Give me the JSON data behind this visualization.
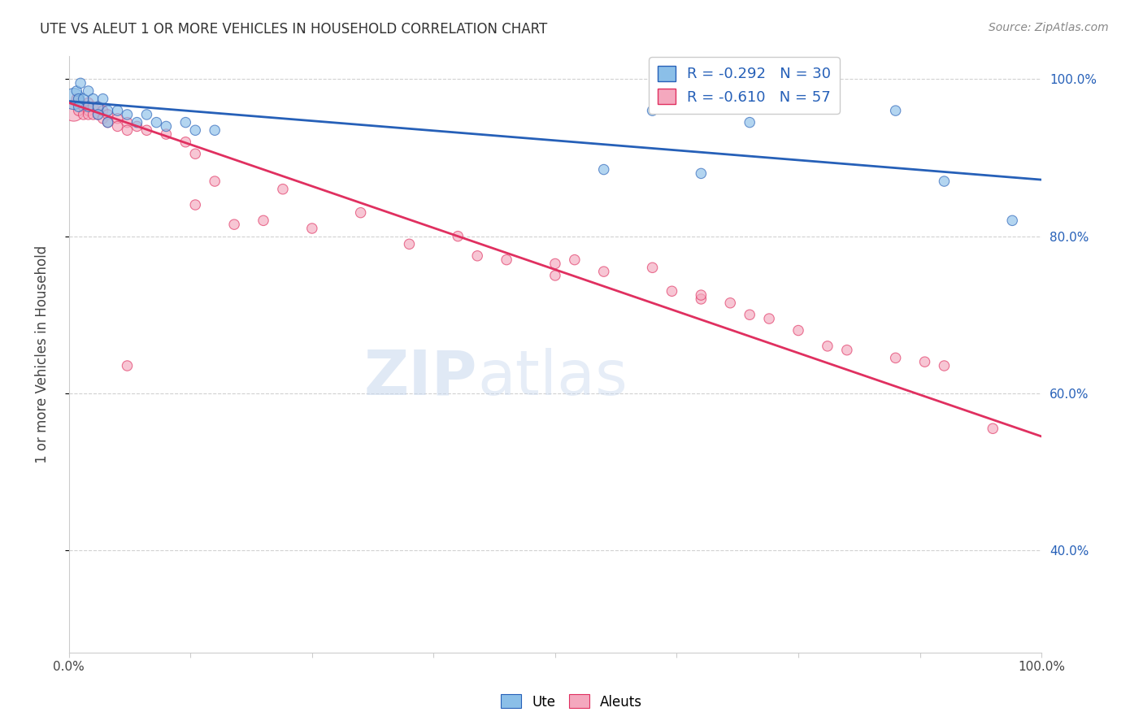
{
  "title": "UTE VS ALEUT 1 OR MORE VEHICLES IN HOUSEHOLD CORRELATION CHART",
  "source": "Source: ZipAtlas.com",
  "ylabel": "1 or more Vehicles in Household",
  "legend_blue_r": "-0.292",
  "legend_blue_n": "30",
  "legend_pink_r": "-0.610",
  "legend_pink_n": "57",
  "ute_color": "#8BBFE8",
  "aleut_color": "#F4A8BE",
  "trendline_ute_color": "#2660B8",
  "trendline_aleut_color": "#E03060",
  "grid_color": "#CCCCCC",
  "background_color": "#FFFFFF",
  "ute_trendline": [
    0.0,
    0.972,
    1.0,
    0.872
  ],
  "aleut_trendline": [
    0.0,
    0.97,
    1.0,
    0.545
  ],
  "ute_points": [
    [
      0.005,
      0.975
    ],
    [
      0.008,
      0.985
    ],
    [
      0.01,
      0.975
    ],
    [
      0.01,
      0.965
    ],
    [
      0.012,
      0.995
    ],
    [
      0.015,
      0.975
    ],
    [
      0.02,
      0.985
    ],
    [
      0.02,
      0.965
    ],
    [
      0.025,
      0.975
    ],
    [
      0.03,
      0.965
    ],
    [
      0.03,
      0.955
    ],
    [
      0.035,
      0.975
    ],
    [
      0.04,
      0.96
    ],
    [
      0.04,
      0.945
    ],
    [
      0.05,
      0.96
    ],
    [
      0.06,
      0.955
    ],
    [
      0.07,
      0.945
    ],
    [
      0.08,
      0.955
    ],
    [
      0.09,
      0.945
    ],
    [
      0.1,
      0.94
    ],
    [
      0.12,
      0.945
    ],
    [
      0.13,
      0.935
    ],
    [
      0.15,
      0.935
    ],
    [
      0.55,
      0.885
    ],
    [
      0.6,
      0.96
    ],
    [
      0.65,
      0.88
    ],
    [
      0.7,
      0.945
    ],
    [
      0.85,
      0.96
    ],
    [
      0.9,
      0.87
    ],
    [
      0.97,
      0.82
    ]
  ],
  "ute_sizes": [
    350,
    80,
    80,
    80,
    80,
    80,
    80,
    80,
    80,
    80,
    80,
    80,
    80,
    80,
    80,
    80,
    80,
    80,
    80,
    80,
    80,
    80,
    80,
    80,
    80,
    80,
    80,
    80,
    80,
    80
  ],
  "aleut_points": [
    [
      0.005,
      0.96
    ],
    [
      0.008,
      0.975
    ],
    [
      0.01,
      0.975
    ],
    [
      0.01,
      0.96
    ],
    [
      0.012,
      0.97
    ],
    [
      0.015,
      0.965
    ],
    [
      0.015,
      0.955
    ],
    [
      0.02,
      0.97
    ],
    [
      0.02,
      0.96
    ],
    [
      0.02,
      0.955
    ],
    [
      0.025,
      0.965
    ],
    [
      0.025,
      0.955
    ],
    [
      0.03,
      0.965
    ],
    [
      0.03,
      0.955
    ],
    [
      0.035,
      0.96
    ],
    [
      0.035,
      0.95
    ],
    [
      0.04,
      0.955
    ],
    [
      0.04,
      0.945
    ],
    [
      0.05,
      0.95
    ],
    [
      0.05,
      0.94
    ],
    [
      0.06,
      0.945
    ],
    [
      0.06,
      0.935
    ],
    [
      0.07,
      0.94
    ],
    [
      0.08,
      0.935
    ],
    [
      0.1,
      0.93
    ],
    [
      0.12,
      0.92
    ],
    [
      0.13,
      0.84
    ],
    [
      0.13,
      0.905
    ],
    [
      0.15,
      0.87
    ],
    [
      0.17,
      0.815
    ],
    [
      0.2,
      0.82
    ],
    [
      0.22,
      0.86
    ],
    [
      0.25,
      0.81
    ],
    [
      0.3,
      0.83
    ],
    [
      0.35,
      0.79
    ],
    [
      0.4,
      0.8
    ],
    [
      0.42,
      0.775
    ],
    [
      0.45,
      0.77
    ],
    [
      0.5,
      0.765
    ],
    [
      0.5,
      0.75
    ],
    [
      0.52,
      0.77
    ],
    [
      0.55,
      0.755
    ],
    [
      0.6,
      0.76
    ],
    [
      0.62,
      0.73
    ],
    [
      0.65,
      0.72
    ],
    [
      0.65,
      0.725
    ],
    [
      0.68,
      0.715
    ],
    [
      0.7,
      0.7
    ],
    [
      0.72,
      0.695
    ],
    [
      0.75,
      0.68
    ],
    [
      0.78,
      0.66
    ],
    [
      0.8,
      0.655
    ],
    [
      0.85,
      0.645
    ],
    [
      0.88,
      0.64
    ],
    [
      0.9,
      0.635
    ],
    [
      0.95,
      0.555
    ],
    [
      0.06,
      0.635
    ]
  ],
  "aleut_sizes": [
    350,
    80,
    80,
    80,
    80,
    80,
    80,
    80,
    80,
    80,
    80,
    80,
    80,
    80,
    80,
    80,
    80,
    80,
    80,
    80,
    80,
    80,
    80,
    80,
    80,
    80,
    80,
    80,
    80,
    80,
    80,
    80,
    80,
    80,
    80,
    80,
    80,
    80,
    80,
    80,
    80,
    80,
    80,
    80,
    80,
    80,
    80,
    80,
    80,
    80,
    80,
    80,
    80,
    80,
    80,
    80,
    80
  ]
}
